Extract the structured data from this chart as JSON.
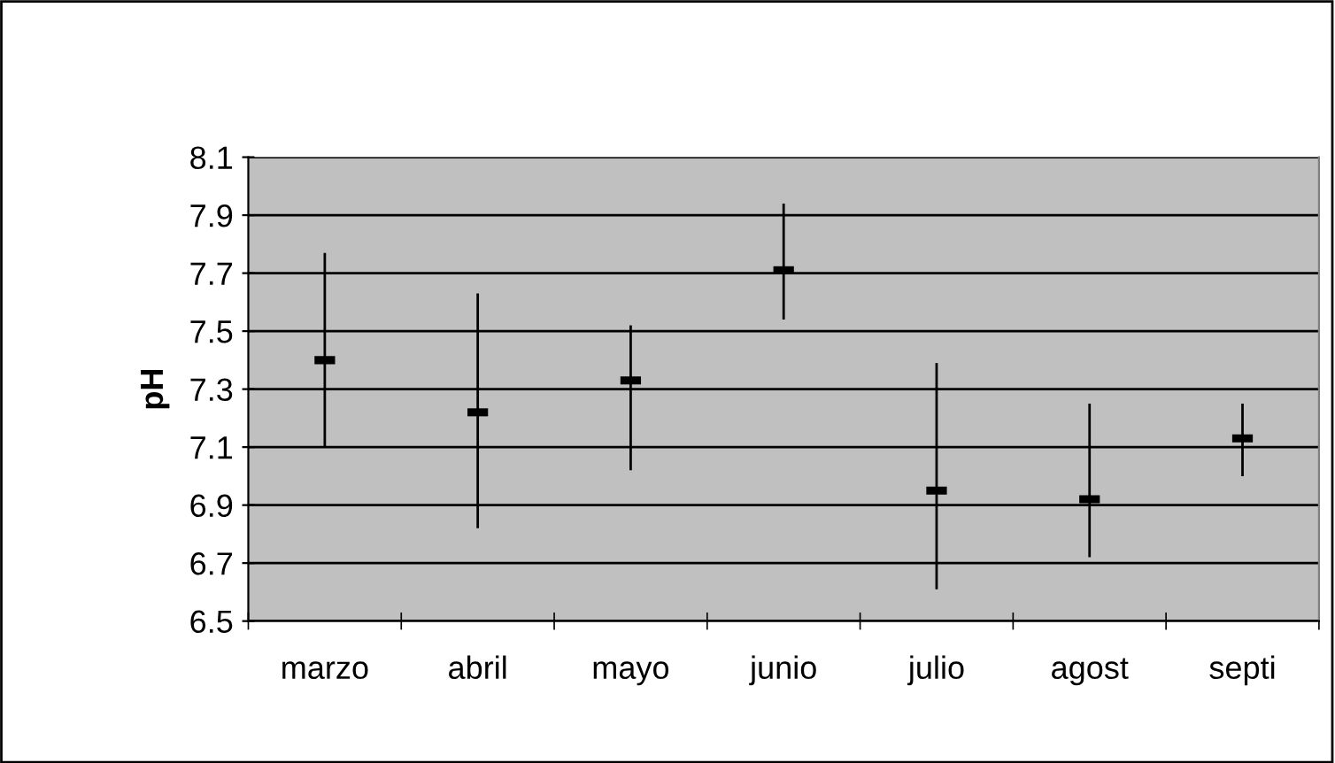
{
  "chart_data": {
    "type": "scatter",
    "ylabel": "pH",
    "categories": [
      "marzo",
      "abril",
      "mayo",
      "junio",
      "julio",
      "agost",
      "septi"
    ],
    "series": [
      {
        "color": "#000000",
        "values": [
          7.4,
          7.22,
          7.33,
          7.71,
          6.95,
          6.92,
          7.13
        ],
        "errors": [
          [
            7.1,
            7.77
          ],
          [
            6.82,
            7.63
          ],
          [
            7.02,
            7.52
          ],
          [
            7.54,
            7.94
          ],
          [
            6.61,
            7.39
          ],
          [
            6.72,
            7.25
          ],
          [
            7.0,
            7.25
          ]
        ]
      }
    ],
    "ylim": [
      6.5,
      8.1
    ],
    "yticks": [
      6.5,
      6.7,
      6.9,
      7.1,
      7.3,
      7.5,
      7.7,
      7.9,
      8.1
    ],
    "grid": "y",
    "marker": "square"
  }
}
